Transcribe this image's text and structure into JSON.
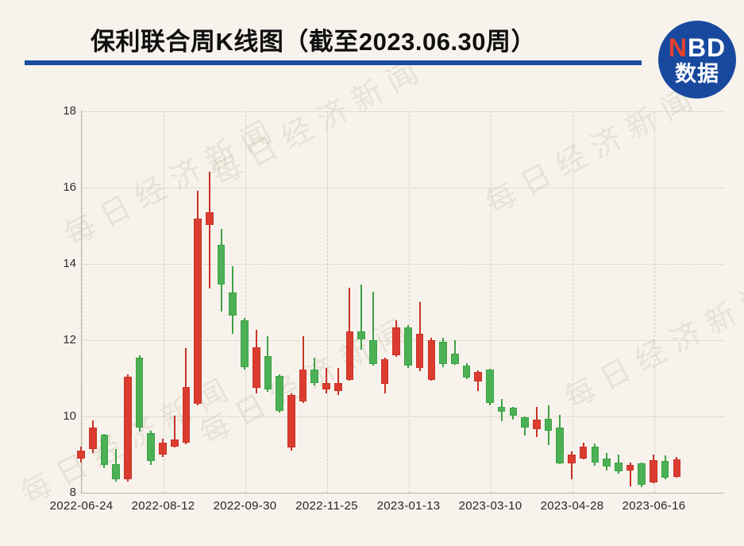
{
  "title": "保利联合周K线图（截至2023.06.30周）",
  "logo": {
    "n": "N",
    "bd": "BD",
    "caption": "数据"
  },
  "watermark": {
    "text": "每日经济新闻"
  },
  "chart_data": {
    "type": "candlestick",
    "title": "保利联合周K线图（截至2023.06.30周）",
    "xlabel": "",
    "ylabel": "",
    "grid": true,
    "legend": "none",
    "y_axis": {
      "min": 8,
      "max": 18,
      "ticks": [
        8,
        10,
        12,
        14,
        16,
        18
      ]
    },
    "x_tick_labels": [
      {
        "index": 0,
        "label": "2022-06-24"
      },
      {
        "index": 7,
        "label": "2022-08-12"
      },
      {
        "index": 14,
        "label": "2022-09-30"
      },
      {
        "index": 21,
        "label": "2022-11-25"
      },
      {
        "index": 28,
        "label": "2023-01-13"
      },
      {
        "index": 35,
        "label": "2023-03-10"
      },
      {
        "index": 42,
        "label": "2023-04-28"
      },
      {
        "index": 49,
        "label": "2023-06-16"
      }
    ],
    "num_candles": 52,
    "value_format": [
      "open",
      "close",
      "low",
      "high"
    ],
    "colors": {
      "up": "#dc3c30",
      "up_border": "#c93327",
      "down": "#4cb155",
      "down_border": "#3da246"
    },
    "candles": [
      [
        8.9,
        9.1,
        8.8,
        9.2
      ],
      [
        9.15,
        9.7,
        9.05,
        9.9
      ],
      [
        9.52,
        8.73,
        8.65,
        9.55
      ],
      [
        8.76,
        8.35,
        8.3,
        9.15
      ],
      [
        8.35,
        11.05,
        8.3,
        11.1
      ],
      [
        11.55,
        9.7,
        9.6,
        11.6
      ],
      [
        9.56,
        8.83,
        8.72,
        9.63
      ],
      [
        9.0,
        9.31,
        8.94,
        9.42
      ],
      [
        9.21,
        9.4,
        9.18,
        10.02
      ],
      [
        9.31,
        10.77,
        9.28,
        11.79
      ],
      [
        10.33,
        15.19,
        10.3,
        15.92
      ],
      [
        15.02,
        15.35,
        13.35,
        16.42
      ],
      [
        14.5,
        13.46,
        12.75,
        14.92
      ],
      [
        13.25,
        12.65,
        12.17,
        13.94
      ],
      [
        12.52,
        11.29,
        11.23,
        12.58
      ],
      [
        10.75,
        11.81,
        10.6,
        12.27
      ],
      [
        11.58,
        10.71,
        10.65,
        12.1
      ],
      [
        11.06,
        10.15,
        10.1,
        11.1
      ],
      [
        9.19,
        10.56,
        9.1,
        10.6
      ],
      [
        10.4,
        11.23,
        10.35,
        12.1
      ],
      [
        11.23,
        10.88,
        10.82,
        11.54
      ],
      [
        10.71,
        10.88,
        10.6,
        11.27
      ],
      [
        10.67,
        10.88,
        10.56,
        11.27
      ],
      [
        10.96,
        12.23,
        10.94,
        13.38
      ],
      [
        12.23,
        12.02,
        11.75,
        13.46
      ],
      [
        12.0,
        11.38,
        11.33,
        13.27
      ],
      [
        10.85,
        11.5,
        10.6,
        11.55
      ],
      [
        11.6,
        12.33,
        11.56,
        12.52
      ],
      [
        12.33,
        11.33,
        11.27,
        12.4
      ],
      [
        11.27,
        12.17,
        11.19,
        13.0
      ],
      [
        10.96,
        12.0,
        10.94,
        12.06
      ],
      [
        11.96,
        11.38,
        11.29,
        12.06
      ],
      [
        11.65,
        11.38,
        11.35,
        12.0
      ],
      [
        11.33,
        11.02,
        10.98,
        11.4
      ],
      [
        10.92,
        11.17,
        10.67,
        11.2
      ],
      [
        11.23,
        10.35,
        10.3,
        11.25
      ],
      [
        10.25,
        10.13,
        9.88,
        10.46
      ],
      [
        10.23,
        10.02,
        9.92,
        10.25
      ],
      [
        9.98,
        9.71,
        9.5,
        10.0
      ],
      [
        9.67,
        9.92,
        9.46,
        10.25
      ],
      [
        9.94,
        9.63,
        9.25,
        10.29
      ],
      [
        9.7,
        8.77,
        8.75,
        10.04
      ],
      [
        8.77,
        9.0,
        8.35,
        9.08
      ],
      [
        8.9,
        9.21,
        8.88,
        9.31
      ],
      [
        9.2,
        8.8,
        8.7,
        9.3
      ],
      [
        8.9,
        8.69,
        8.58,
        9.04
      ],
      [
        8.79,
        8.56,
        8.5,
        9.0
      ],
      [
        8.58,
        8.73,
        8.17,
        8.79
      ],
      [
        8.77,
        8.21,
        8.15,
        8.8
      ],
      [
        8.27,
        8.85,
        8.25,
        9.0
      ],
      [
        8.83,
        8.4,
        8.35,
        8.98
      ],
      [
        8.42,
        8.88,
        8.4,
        8.94
      ]
    ]
  }
}
